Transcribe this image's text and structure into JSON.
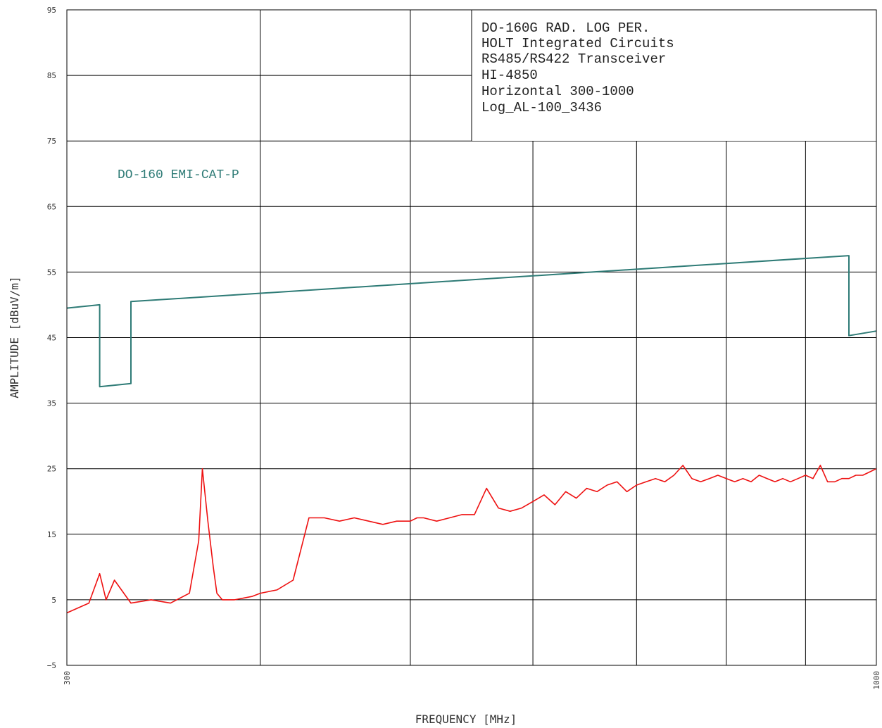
{
  "chart_data": {
    "type": "line",
    "title_block": [
      "DO-160G RAD. LOG PER.",
      "HOLT Integrated Circuits",
      "RS485/RS422 Transceiver",
      "HI-4850",
      "Horizontal 300-1000",
      "Log_AL-100_3436"
    ],
    "xlabel": "FREQUENCY [MHz]",
    "ylabel": "AMPLITUDE [dBuV/m]",
    "x_scale": "log",
    "xlim": [
      300,
      1000
    ],
    "ylim": [
      -5,
      95
    ],
    "x_tick_labels": [
      "300",
      "1000"
    ],
    "y_ticks": [
      -5,
      5,
      15,
      25,
      35,
      45,
      55,
      65,
      75,
      85,
      95
    ],
    "grid": true,
    "series": [
      {
        "name": "DO-160 EMI-CAT-P",
        "color": "#2e7b76",
        "x": [
          300,
          315,
          315,
          330,
          330,
          960,
          960,
          1000
        ],
        "y": [
          49.5,
          50,
          37.5,
          38,
          50.5,
          57.5,
          45.3,
          46
        ]
      },
      {
        "color": "#ee1111",
        "x": [
          300,
          310,
          315,
          318,
          322,
          330,
          340,
          350,
          360,
          365,
          367,
          370,
          373,
          375,
          378,
          385,
          395,
          400,
          410,
          420,
          430,
          440,
          450,
          460,
          470,
          480,
          490,
          500,
          505,
          510,
          520,
          530,
          540,
          550,
          560,
          570,
          580,
          590,
          600,
          610,
          620,
          630,
          640,
          650,
          660,
          670,
          680,
          690,
          700,
          710,
          720,
          730,
          740,
          750,
          760,
          770,
          780,
          790,
          800,
          810,
          820,
          830,
          840,
          850,
          860,
          870,
          880,
          890,
          900,
          910,
          920,
          930,
          940,
          950,
          960,
          970,
          980,
          990,
          1000
        ],
        "y": [
          3,
          4.5,
          9,
          5,
          8,
          4.5,
          5,
          4.5,
          6,
          14,
          25,
          17,
          10,
          6,
          5,
          5,
          5.5,
          6,
          6.5,
          8,
          17.5,
          17.5,
          17,
          17.5,
          17,
          16.5,
          17,
          17,
          17.5,
          17.5,
          17,
          17.5,
          18,
          18,
          22,
          19,
          18.5,
          19,
          20,
          21,
          19.5,
          21.5,
          20.5,
          22,
          21.5,
          22.5,
          23,
          21.5,
          22.5,
          23,
          23.5,
          23,
          24,
          25.5,
          23.5,
          23,
          23.5,
          24,
          23.5,
          23,
          23.5,
          23,
          24,
          23.5,
          23,
          23.5,
          23,
          23.5,
          24,
          23.5,
          25.5,
          23,
          23,
          23.5,
          23.5,
          24,
          24,
          24.5,
          25
        ]
      }
    ]
  }
}
